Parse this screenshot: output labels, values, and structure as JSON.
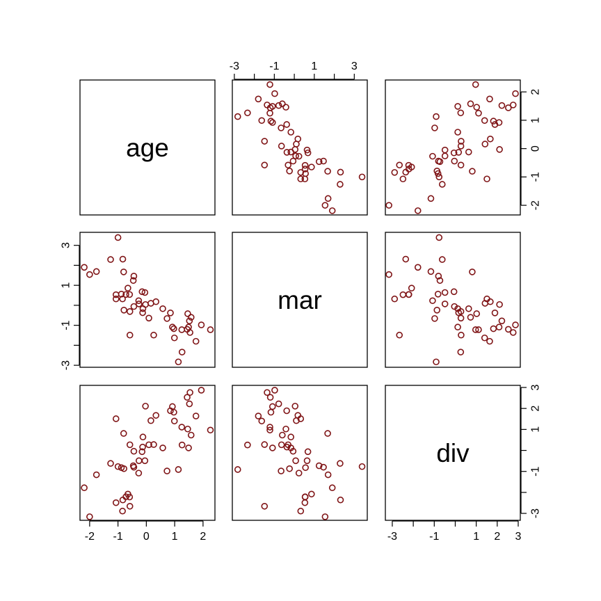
{
  "chart_data": {
    "type": "scatter",
    "layout": "pairs-matrix",
    "variables": [
      "age",
      "mar",
      "div"
    ],
    "point_color": "#7f1416",
    "marker": "open-circle",
    "ranges": {
      "age": [
        -2.34,
        2.42
      ],
      "mar": [
        -3.1,
        3.65
      ],
      "div": [
        -3.33,
        3.1
      ]
    },
    "axes": {
      "age": {
        "ticks": [
          -2,
          -1,
          0,
          1,
          2
        ],
        "labels": [
          "-2",
          "-1",
          "0",
          "1",
          "2"
        ]
      },
      "mar": {
        "ticks": [
          -3,
          -2,
          -1,
          0,
          1,
          2,
          3
        ],
        "labels": [
          "-3",
          "",
          "-1",
          "",
          "1",
          "",
          "3"
        ]
      },
      "div": {
        "ticks": [
          -3,
          -2,
          -1,
          0,
          1,
          2,
          3
        ],
        "labels": [
          "-3",
          "",
          "-1",
          "",
          "1",
          "2",
          "3"
        ]
      }
    },
    "data": {
      "age": [
        -1.0,
        -1.26,
        -0.83,
        -2.19,
        -2.0,
        -1.76,
        -0.8,
        -0.44,
        -0.46,
        -0.65,
        -1.07,
        -0.88,
        -0.72,
        -0.59,
        -1.07,
        -0.84,
        -0.15,
        -0.05,
        -0.27,
        -0.26,
        -0.03,
        0.16,
        0.34,
        -0.44,
        -0.12,
        -0.13,
        -0.79,
        -0.58,
        0.09,
        0.58,
        0.85,
        0.73,
        -0.58,
        0.26,
        0.92,
        0.97,
        0.99,
        1.25,
        1.46,
        1.58,
        1.52,
        1.49,
        1.44,
        1.54,
        1.94,
        2.26,
        1.75,
        1.26,
        1.13
      ],
      "mar": [
        3.39,
        2.29,
        2.31,
        1.9,
        1.54,
        1.69,
        1.67,
        1.46,
        1.24,
        0.86,
        0.53,
        0.56,
        0.54,
        0.54,
        0.32,
        0.32,
        0.68,
        0.64,
        0.23,
        0.07,
        0.04,
        0.1,
        0.18,
        -0.06,
        -0.17,
        -0.37,
        -0.24,
        -0.31,
        -0.64,
        -0.17,
        -0.38,
        -0.66,
        -1.49,
        -1.49,
        -1.09,
        -1.17,
        -1.63,
        -1.22,
        -0.42,
        -0.6,
        -0.78,
        -1.09,
        -1.2,
        -1.36,
        -0.98,
        -1.22,
        -1.8,
        -2.34,
        -2.83
      ],
      "div": [
        -0.77,
        -0.62,
        -2.36,
        -1.78,
        -3.16,
        -1.16,
        0.81,
        -0.8,
        -0.73,
        -2.08,
        -2.49,
        -0.82,
        -2.21,
        -2.22,
        1.51,
        -2.89,
        -0.06,
        -0.49,
        -1.08,
        -0.49,
        2.11,
        1.42,
        1.67,
        -0.04,
        0.64,
        0.16,
        -0.87,
        0.27,
        0.27,
        0.12,
        1.89,
        -0.98,
        -2.66,
        0.28,
        2.09,
        1.82,
        1.4,
        1.11,
        1.02,
        0.73,
        2.22,
        0.12,
        2.53,
        2.76,
        2.87,
        0.97,
        1.64,
        0.26,
        -0.91
      ]
    }
  }
}
